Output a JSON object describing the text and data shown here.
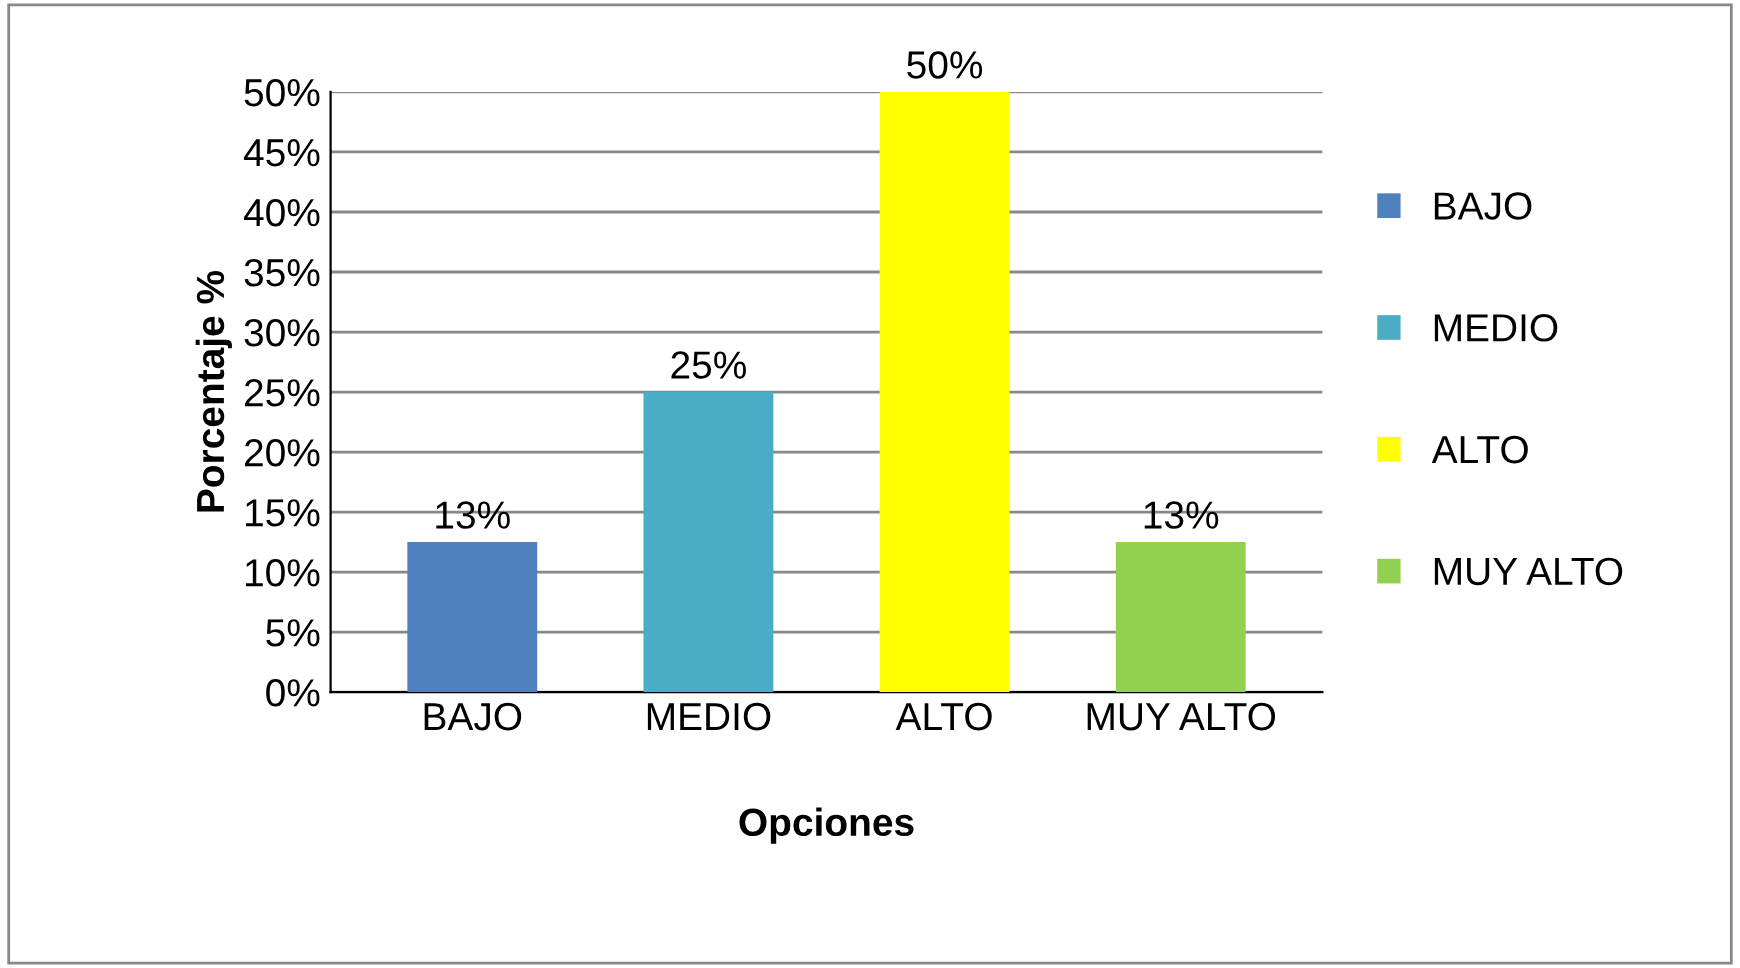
{
  "chart_data": {
    "type": "bar",
    "categories": [
      "BAJO",
      "MEDIO",
      "ALTO",
      "MUY ALTO"
    ],
    "series": [
      {
        "name": "BAJO",
        "color": "#4f81bd",
        "values": [
          12.5,
          null,
          null,
          null
        ],
        "value_labels": [
          "13%",
          null,
          null,
          null
        ]
      },
      {
        "name": "MEDIO",
        "color": "#4bacc6",
        "values": [
          null,
          25,
          null,
          null
        ],
        "value_labels": [
          null,
          "25%",
          null,
          null
        ]
      },
      {
        "name": "ALTO",
        "color": "#ffff00",
        "values": [
          null,
          null,
          50,
          null
        ],
        "value_labels": [
          null,
          null,
          "50%",
          null
        ]
      },
      {
        "name": "MUY ALTO",
        "color": "#92d050",
        "values": [
          null,
          null,
          null,
          12.5
        ],
        "value_labels": [
          null,
          null,
          null,
          "13%"
        ]
      }
    ],
    "stacked": true,
    "xlabel": "Opciones",
    "ylabel": "Porcentaje %",
    "ylim": [
      0,
      50
    ],
    "yticks": [
      {
        "value": 0,
        "label": "0%"
      },
      {
        "value": 5,
        "label": "5%"
      },
      {
        "value": 10,
        "label": "10%"
      },
      {
        "value": 15,
        "label": "15%"
      },
      {
        "value": 20,
        "label": "20%"
      },
      {
        "value": 25,
        "label": "25%"
      },
      {
        "value": 30,
        "label": "30%"
      },
      {
        "value": 35,
        "label": "35%"
      },
      {
        "value": 40,
        "label": "40%"
      },
      {
        "value": 45,
        "label": "45%"
      },
      {
        "value": 50,
        "label": "50%"
      }
    ],
    "grid": "y",
    "legend": "right"
  }
}
